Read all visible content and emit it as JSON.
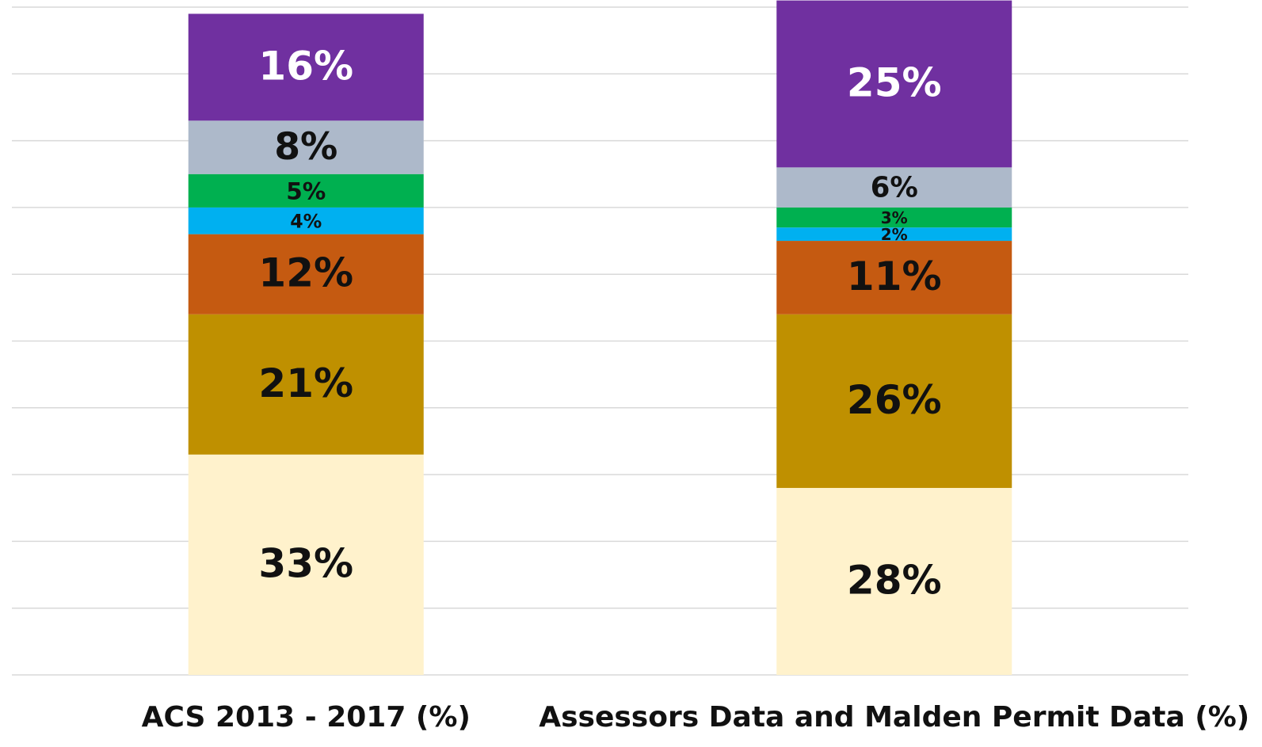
{
  "chart_data": {
    "type": "stacked_bar",
    "categories": [
      "ACS 2013 - 2017 (%)",
      "Assessors Data and Malden Permit Data (%)"
    ],
    "ylim": [
      0,
      100
    ],
    "yticks": [
      0,
      10,
      20,
      30,
      40,
      50,
      60,
      70,
      80,
      90,
      100
    ],
    "grid": true,
    "series": [
      {
        "color": "#FFF2CC",
        "label_color": "#111111",
        "values": [
          33,
          28
        ],
        "value_labels": [
          "33%",
          "28%"
        ]
      },
      {
        "color": "#BF9000",
        "label_color": "#111111",
        "values": [
          21,
          26
        ],
        "value_labels": [
          "21%",
          "26%"
        ]
      },
      {
        "color": "#C55A11",
        "label_color": "#111111",
        "values": [
          12,
          11
        ],
        "value_labels": [
          "12%",
          "11%"
        ]
      },
      {
        "color": "#00B0F0",
        "label_color": "#111111",
        "values": [
          4,
          2
        ],
        "value_labels": [
          "4%",
          "2%"
        ]
      },
      {
        "color": "#00B050",
        "label_color": "#111111",
        "values": [
          5,
          3
        ],
        "value_labels": [
          "5%",
          "3%"
        ]
      },
      {
        "color": "#ADB9CA",
        "label_color": "#111111",
        "values": [
          8,
          6
        ],
        "value_labels": [
          "8%",
          "6%"
        ]
      },
      {
        "color": "#7030A0",
        "label_color": "#ffffff",
        "values": [
          16,
          25
        ],
        "value_labels": [
          "16%",
          "25%"
        ]
      }
    ]
  }
}
